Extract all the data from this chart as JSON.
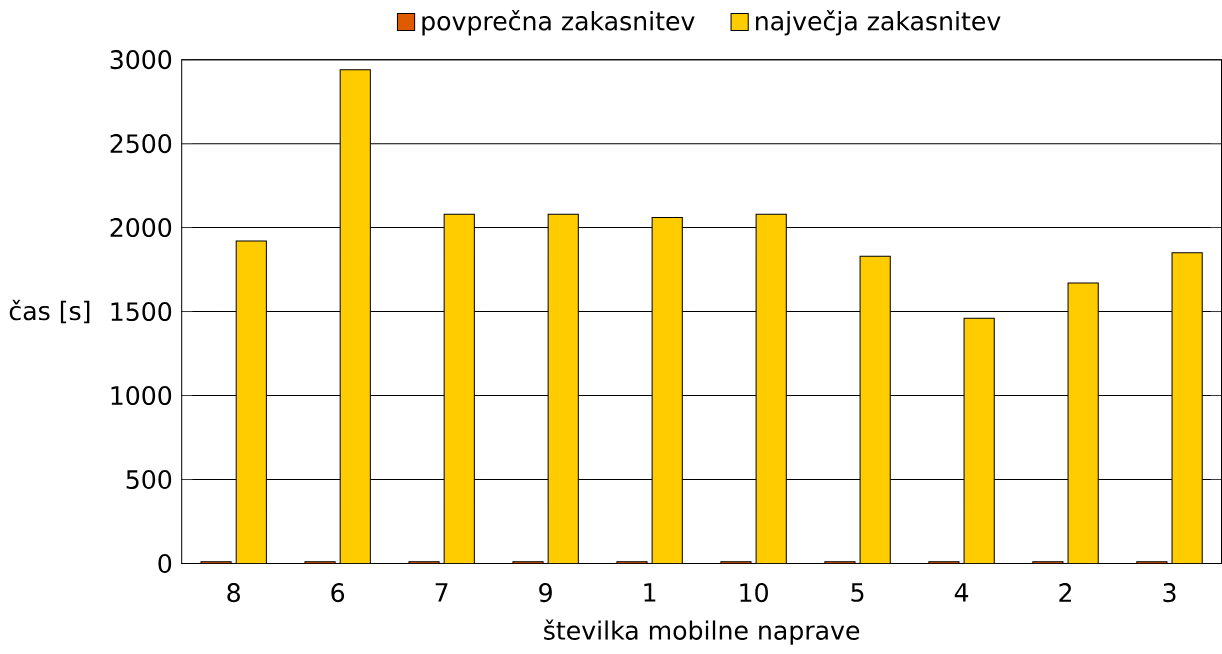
{
  "chart_data": {
    "type": "bar",
    "xlabel": "številka mobilne naprave",
    "ylabel": "čas [s]",
    "categories": [
      "8",
      "6",
      "7",
      "9",
      "1",
      "10",
      "5",
      "4",
      "2",
      "3"
    ],
    "series": [
      {
        "name": "povprečna zakasnitev",
        "color": "#e05a00",
        "values": [
          10,
          10,
          10,
          10,
          10,
          10,
          10,
          10,
          10,
          10
        ]
      },
      {
        "name": "največja zakasnitev",
        "color": "#ffcc00",
        "values": [
          1920,
          2940,
          2080,
          2080,
          2060,
          2080,
          1830,
          1460,
          1670,
          1850
        ]
      }
    ],
    "ylim": [
      0,
      3000
    ],
    "yticks": [
      0,
      500,
      1000,
      1500,
      2000,
      2500,
      3000
    ],
    "grid": "y",
    "legend": "top"
  }
}
